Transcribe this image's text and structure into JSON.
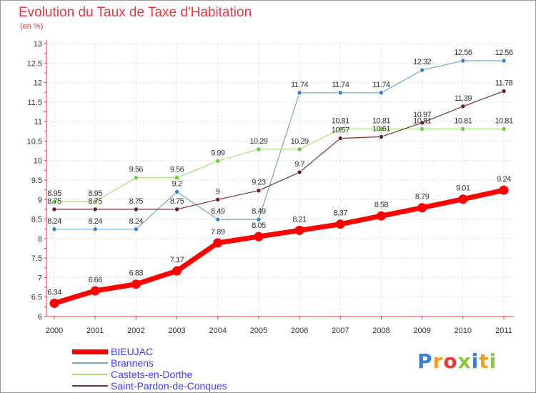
{
  "header": {
    "title": "Evolution du Taux de Taxe d'Habitation",
    "unit": "(en %)"
  },
  "logo": {
    "text": "Proxiti",
    "letters": [
      "P",
      "r",
      "o",
      "x",
      "i",
      "t",
      "i"
    ],
    "colors": [
      "#3a7fd5",
      "#f0a020",
      "#e8393f",
      "#8cc63f",
      "#3a7fd5",
      "#f0a020",
      "#8cc63f"
    ]
  },
  "chart_data": {
    "type": "line",
    "title": "Evolution du Taux de Taxe d'Habitation",
    "subtitle": "(en %)",
    "xlabel": "",
    "ylabel": "",
    "categories": [
      "2000",
      "2001",
      "2002",
      "2003",
      "2004",
      "2005",
      "2006",
      "2007",
      "2008",
      "2009",
      "2010",
      "2011"
    ],
    "ylim": [
      6,
      13
    ],
    "yticks": [
      "6",
      "6.5",
      "7",
      "7.5",
      "8",
      "8.5",
      "9",
      "9.5",
      "10",
      "10.5",
      "11",
      "11.5",
      "12",
      "12.5",
      "13"
    ],
    "grid": true,
    "legend_position": "bottom-left",
    "series": [
      {
        "name": "Brannens",
        "color": "#6ea6d6",
        "marker": "#3a82c8",
        "width": 1.2,
        "values": [
          8.24,
          8.24,
          8.24,
          9.2,
          8.49,
          8.49,
          11.74,
          11.74,
          11.74,
          12.32,
          12.56,
          12.56
        ],
        "labels": [
          "8.24",
          "8.24",
          "8.24",
          "9.2",
          "8.49",
          "8.49",
          "11.74",
          "11.74",
          "11.74",
          "12.32",
          "12.56",
          "12.56"
        ]
      },
      {
        "name": "Castets-en-Dorthe",
        "color": "#a5e07a",
        "marker": "#6ccb3a",
        "width": 1.2,
        "values": [
          8.95,
          8.95,
          9.56,
          9.56,
          9.99,
          10.29,
          10.29,
          10.81,
          10.81,
          10.81,
          10.81,
          10.81
        ],
        "labels": [
          "8.95",
          "8.95",
          "9.56",
          "9.56",
          "9.99",
          "10.29",
          "10.29",
          "10.81",
          "10.81",
          "10.81",
          "10.81",
          "10.81"
        ]
      },
      {
        "name": "Saint-Pardon-de-Conques",
        "color": "#7a3030",
        "marker": "#6a1f1f",
        "width": 1.2,
        "values": [
          8.75,
          8.75,
          8.75,
          8.75,
          9,
          9.23,
          9.7,
          10.57,
          10.61,
          10.97,
          11.39,
          11.78
        ],
        "labels": [
          "8.75",
          "8.75",
          "8.75",
          "8.75",
          "9",
          "9.23",
          "9.7",
          "10.57",
          "10.61",
          "10.97",
          "11.39",
          "11.78"
        ]
      },
      {
        "name": "BIEUJAC",
        "color": "#ff0000",
        "marker": "#ff0000",
        "width": 7,
        "values": [
          6.34,
          6.66,
          6.83,
          7.17,
          7.89,
          8.05,
          8.21,
          8.37,
          8.58,
          8.79,
          9.01,
          9.24
        ],
        "labels": [
          "6.34",
          "6.66",
          "6.83",
          "7.17",
          "7.89",
          "8.05",
          "8.21",
          "8.37",
          "8.58",
          "8.79",
          "9.01",
          "9.24"
        ]
      }
    ],
    "legend": [
      "BIEUJAC",
      "Brannens",
      "Castets-en-Dorthe",
      "Saint-Pardon-de-Conques"
    ]
  }
}
